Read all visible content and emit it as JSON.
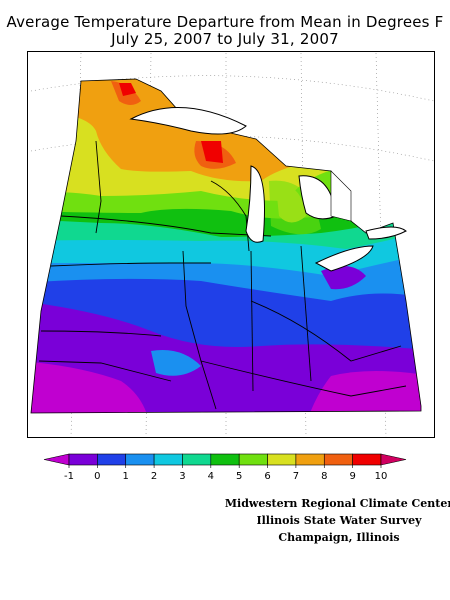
{
  "title_line1": "Average Temperature Departure from Mean in Degrees F",
  "title_line2": "July 25, 2007 to July 31, 2007",
  "legend": {
    "tick_labels": [
      "-1",
      "0",
      "1",
      "2",
      "3",
      "4",
      "5",
      "6",
      "7",
      "8",
      "9",
      "10"
    ],
    "colors": [
      "#c000d0",
      "#7a00d8",
      "#2040e8",
      "#1a90f0",
      "#10c8e0",
      "#10d890",
      "#10c010",
      "#70e010",
      "#d8e020",
      "#f0a010",
      "#f06010",
      "#f00000",
      "#d00060"
    ]
  },
  "credits": {
    "line1": "Midwestern Regional Climate Center",
    "line2": "Illinois State Water Survey",
    "line3": "Champaign, Illinois"
  },
  "map": {
    "region": "Midwest United States",
    "colors": {
      "neg1": "#c000d0",
      "zero": "#7a00d8",
      "one": "#2040e8",
      "two": "#1a90f0",
      "three": "#10c8e0",
      "four": "#10d890",
      "five": "#10c010",
      "six": "#70e010",
      "seven": "#d8e020",
      "eight": "#f0a010",
      "nine": "#f06010",
      "ten": "#f00000",
      "high": "#d00060"
    }
  }
}
